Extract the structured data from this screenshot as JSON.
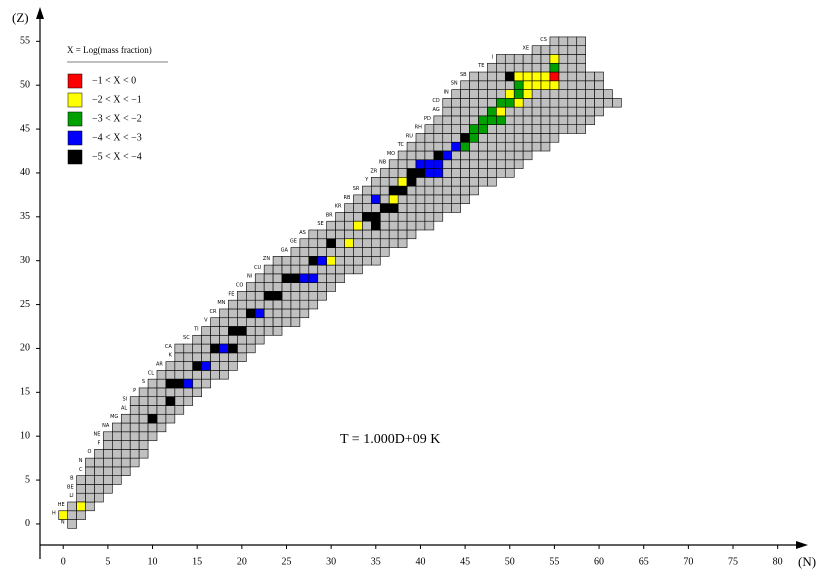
{
  "chart_data": {
    "type": "nuclide",
    "x_label": "(N)",
    "y_label": "(Z)",
    "annotation": "T = 1.000D+09 K",
    "xlim": [
      -2.6,
      82.5
    ],
    "ylim": [
      -2.4,
      58
    ],
    "xticks": [
      0,
      5,
      10,
      15,
      20,
      25,
      30,
      35,
      40,
      45,
      50,
      55,
      60,
      65,
      70,
      75,
      80
    ],
    "yticks": [
      0,
      5,
      10,
      15,
      20,
      25,
      30,
      35,
      40,
      45,
      50,
      55
    ],
    "cell_color": "#c0c0c0",
    "legend": {
      "title": "X = Log(mass fraction)",
      "items": [
        {
          "label": "−1 < X < 0",
          "color": "#ff0000"
        },
        {
          "label": "−2 < X < −1",
          "color": "#ffff00"
        },
        {
          "label": "−3 < X < −2",
          "color": "#00a000"
        },
        {
          "label": "−4 < X < −3",
          "color": "#0000ff"
        },
        {
          "label": "−5 < X < −4",
          "color": "#000000"
        }
      ]
    },
    "elements": [
      "N",
      "H",
      "HE",
      "LI",
      "BE",
      "B",
      "C",
      "N",
      "O",
      "F",
      "NE",
      "NA",
      "MG",
      "AL",
      "SI",
      "P",
      "S",
      "CL",
      "AR",
      "K",
      "CA",
      "SC",
      "TI",
      "V",
      "CR",
      "MN",
      "FE",
      "CO",
      "NI",
      "CU",
      "ZN",
      "GA",
      "GE",
      "AS",
      "SE",
      "BR",
      "KR",
      "RB",
      "SR",
      "Y",
      "ZR",
      "NB",
      "MO",
      "TC",
      "RU",
      "RH",
      "PD",
      "AG",
      "CD",
      "IN",
      "SN",
      "SB",
      "TE",
      "I",
      "XE",
      "CS"
    ],
    "rows": [
      [
        1,
        1
      ],
      [
        0,
        2
      ],
      [
        1,
        3
      ],
      [
        2,
        4
      ],
      [
        2,
        5
      ],
      [
        2,
        6
      ],
      [
        3,
        7
      ],
      [
        3,
        8
      ],
      [
        4,
        9
      ],
      [
        5,
        9
      ],
      [
        5,
        10
      ],
      [
        6,
        11
      ],
      [
        7,
        12
      ],
      [
        8,
        13
      ],
      [
        8,
        14
      ],
      [
        9,
        15
      ],
      [
        10,
        16
      ],
      [
        11,
        18
      ],
      [
        12,
        19
      ],
      [
        13,
        20
      ],
      [
        13,
        21
      ],
      [
        15,
        22
      ],
      [
        16,
        24
      ],
      [
        17,
        26
      ],
      [
        18,
        27
      ],
      [
        19,
        28
      ],
      [
        20,
        29
      ],
      [
        21,
        30
      ],
      [
        22,
        31
      ],
      [
        23,
        33
      ],
      [
        24,
        35
      ],
      [
        26,
        36
      ],
      [
        27,
        38
      ],
      [
        28,
        39
      ],
      [
        30,
        41
      ],
      [
        31,
        42
      ],
      [
        32,
        44
      ],
      [
        33,
        45
      ],
      [
        34,
        46
      ],
      [
        35,
        48
      ],
      [
        36,
        50
      ],
      [
        37,
        51
      ],
      [
        38,
        52
      ],
      [
        39,
        54
      ],
      [
        40,
        55
      ],
      [
        41,
        58
      ],
      [
        42,
        59
      ],
      [
        43,
        60
      ],
      [
        43,
        62
      ],
      [
        44,
        61
      ],
      [
        45,
        60
      ],
      [
        46,
        60
      ],
      [
        48,
        58
      ],
      [
        49,
        58
      ],
      [
        53,
        58
      ],
      [
        55,
        58
      ]
    ],
    "cells": [
      [
        0,
        1,
        1
      ],
      [
        2,
        2,
        1
      ],
      [
        10,
        12,
        4
      ],
      [
        12,
        14,
        4
      ],
      [
        12,
        16,
        4
      ],
      [
        13,
        16,
        4
      ],
      [
        14,
        16,
        3
      ],
      [
        15,
        18,
        4
      ],
      [
        16,
        18,
        3
      ],
      [
        17,
        20,
        4
      ],
      [
        18,
        20,
        3
      ],
      [
        19,
        20,
        4
      ],
      [
        19,
        22,
        4
      ],
      [
        20,
        22,
        4
      ],
      [
        21,
        24,
        4
      ],
      [
        22,
        24,
        3
      ],
      [
        23,
        26,
        4
      ],
      [
        24,
        26,
        4
      ],
      [
        25,
        28,
        4
      ],
      [
        26,
        28,
        4
      ],
      [
        27,
        28,
        3
      ],
      [
        28,
        28,
        3
      ],
      [
        28,
        30,
        4
      ],
      [
        29,
        30,
        3
      ],
      [
        30,
        30,
        1
      ],
      [
        30,
        32,
        4
      ],
      [
        32,
        32,
        1
      ],
      [
        33,
        34,
        1
      ],
      [
        35,
        34,
        4
      ],
      [
        34,
        35,
        4
      ],
      [
        35,
        35,
        4
      ],
      [
        36,
        36,
        4
      ],
      [
        37,
        36,
        4
      ],
      [
        35,
        37,
        3
      ],
      [
        37,
        37,
        1
      ],
      [
        37,
        38,
        4
      ],
      [
        38,
        38,
        4
      ],
      [
        38,
        39,
        1
      ],
      [
        39,
        39,
        4
      ],
      [
        39,
        40,
        4
      ],
      [
        40,
        40,
        4
      ],
      [
        41,
        40,
        3
      ],
      [
        42,
        40,
        3
      ],
      [
        40,
        41,
        3
      ],
      [
        41,
        41,
        3
      ],
      [
        42,
        41,
        3
      ],
      [
        42,
        42,
        4
      ],
      [
        43,
        42,
        3
      ],
      [
        44,
        43,
        3
      ],
      [
        45,
        43,
        2
      ],
      [
        45,
        44,
        4
      ],
      [
        46,
        44,
        2
      ],
      [
        46,
        45,
        2
      ],
      [
        47,
        45,
        2
      ],
      [
        47,
        46,
        2
      ],
      [
        48,
        46,
        2
      ],
      [
        49,
        46,
        2
      ],
      [
        48,
        47,
        2
      ],
      [
        49,
        47,
        1
      ],
      [
        49,
        48,
        2
      ],
      [
        50,
        48,
        2
      ],
      [
        51,
        48,
        1
      ],
      [
        50,
        49,
        1
      ],
      [
        51,
        49,
        2
      ],
      [
        52,
        49,
        1
      ],
      [
        52,
        50,
        1
      ],
      [
        53,
        50,
        1
      ],
      [
        54,
        50,
        1
      ],
      [
        55,
        50,
        1
      ],
      [
        51,
        50,
        2
      ],
      [
        50,
        51,
        4
      ],
      [
        51,
        51,
        1
      ],
      [
        52,
        51,
        1
      ],
      [
        53,
        51,
        1
      ],
      [
        54,
        51,
        1
      ],
      [
        55,
        51,
        0
      ],
      [
        55,
        52,
        2
      ],
      [
        55,
        53,
        1
      ]
    ]
  }
}
